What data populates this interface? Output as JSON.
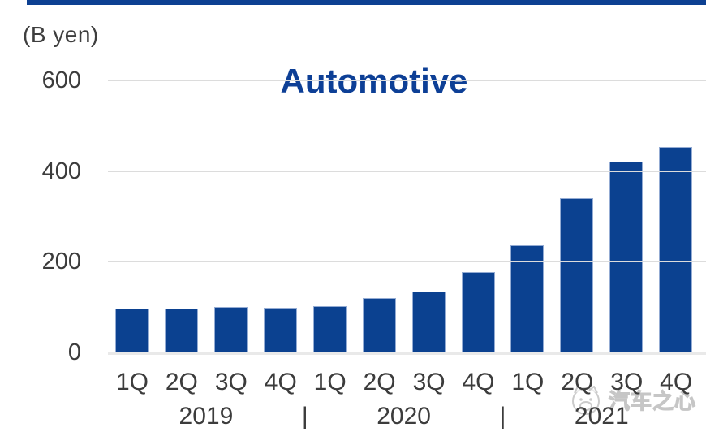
{
  "page": {
    "accent_color": "#0d4092",
    "background": "#ffffff"
  },
  "watermark": {
    "text": "汽车之心",
    "logo": "car-mascot-logo"
  },
  "chart_data": {
    "type": "bar",
    "title": "Automotive",
    "title_color": "#0d3f96",
    "ylabel": "(B yen)",
    "ylim": [
      0,
      600
    ],
    "yticks": [
      0,
      200,
      400,
      600
    ],
    "grid": true,
    "legend": "none",
    "bar_color": "#0b4190",
    "categories": [
      "1Q",
      "2Q",
      "3Q",
      "4Q",
      "1Q",
      "2Q",
      "3Q",
      "4Q",
      "1Q",
      "2Q",
      "3Q",
      "4Q"
    ],
    "values": [
      96,
      97,
      100,
      98,
      103,
      120,
      135,
      177,
      237,
      340,
      421,
      454
    ],
    "year_groups": [
      {
        "label": "2019",
        "quarters": 4
      },
      {
        "label": "2020",
        "quarters": 4
      },
      {
        "label": "2021",
        "quarters": 4
      }
    ],
    "group_separator": "|"
  }
}
